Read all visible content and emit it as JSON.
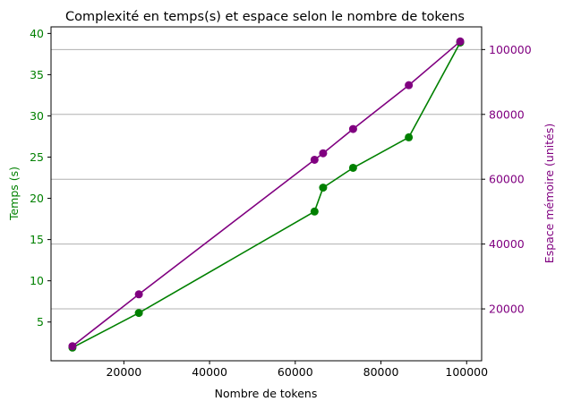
{
  "chart_data": {
    "type": "line",
    "title": "Complexité en temps(s) et espace selon le nombre de tokens",
    "xlabel": "Nombre de tokens",
    "xlim": [
      3000,
      103500
    ],
    "xticks": [
      20000,
      40000,
      60000,
      80000,
      100000
    ],
    "x": [
      8000,
      23500,
      64500,
      66500,
      73500,
      86500,
      98500
    ],
    "left_axis": {
      "label": "Temps (s)",
      "ylim": [
        0.3,
        40.8
      ],
      "ticks": [
        5,
        10,
        15,
        20,
        25,
        30,
        35,
        40
      ],
      "color": "#008000"
    },
    "right_axis": {
      "label": "Espace mémoire (unités)",
      "ylim": [
        4000,
        107000
      ],
      "ticks": [
        20000,
        40000,
        60000,
        80000,
        100000
      ],
      "color": "#800080"
    },
    "grid": "horizontal lines at right-axis ticks",
    "series": [
      {
        "axis": "left",
        "color": "#008000",
        "values": [
          1.9,
          6.1,
          18.4,
          21.3,
          23.7,
          27.4,
          38.9
        ]
      },
      {
        "axis": "right",
        "color": "#800080",
        "values": [
          8500,
          24500,
          66000,
          68000,
          75500,
          89000,
          102500
        ]
      }
    ]
  }
}
